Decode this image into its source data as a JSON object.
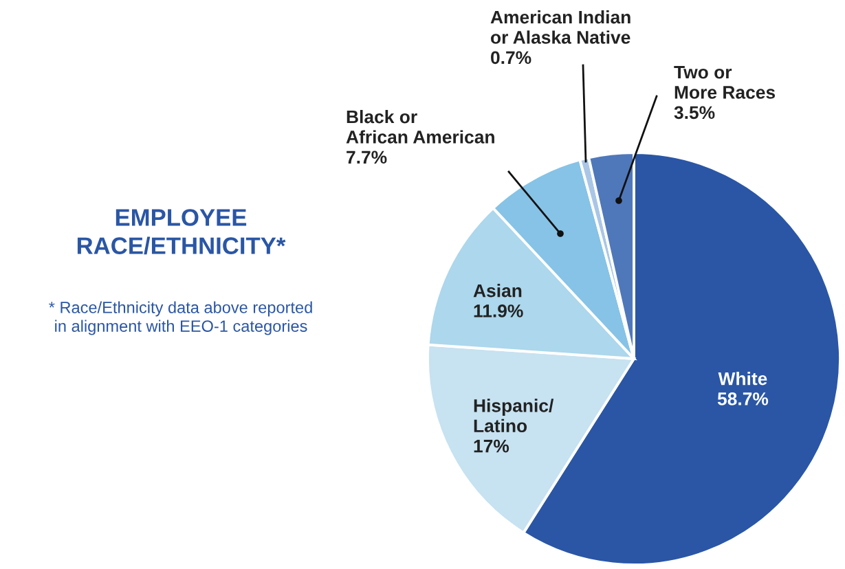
{
  "chart_data": {
    "type": "pie",
    "title": "EMPLOYEE\nRACE/ETHNICITY*",
    "annotations": [
      "* Race/Ethnicity data above reported\nin alignment with EEO-1 categories"
    ],
    "categories": [
      "White",
      "Hispanic/\nLatino",
      "Asian",
      "Black or\nAfrican American",
      "American Indian\nor Alaska Native",
      "Two or\nMore Races"
    ],
    "values": [
      58.7,
      17,
      11.9,
      7.7,
      0.7,
      3.5
    ],
    "value_labels": [
      "58.7%",
      "17%",
      "11.9%",
      "7.7%",
      "0.7%",
      "3.5%"
    ],
    "colors": [
      "#2a56a5",
      "#c7e2f1",
      "#acd7ec",
      "#86c3e6",
      "#a9c6e6",
      "#4f78bb"
    ],
    "legend": false
  }
}
